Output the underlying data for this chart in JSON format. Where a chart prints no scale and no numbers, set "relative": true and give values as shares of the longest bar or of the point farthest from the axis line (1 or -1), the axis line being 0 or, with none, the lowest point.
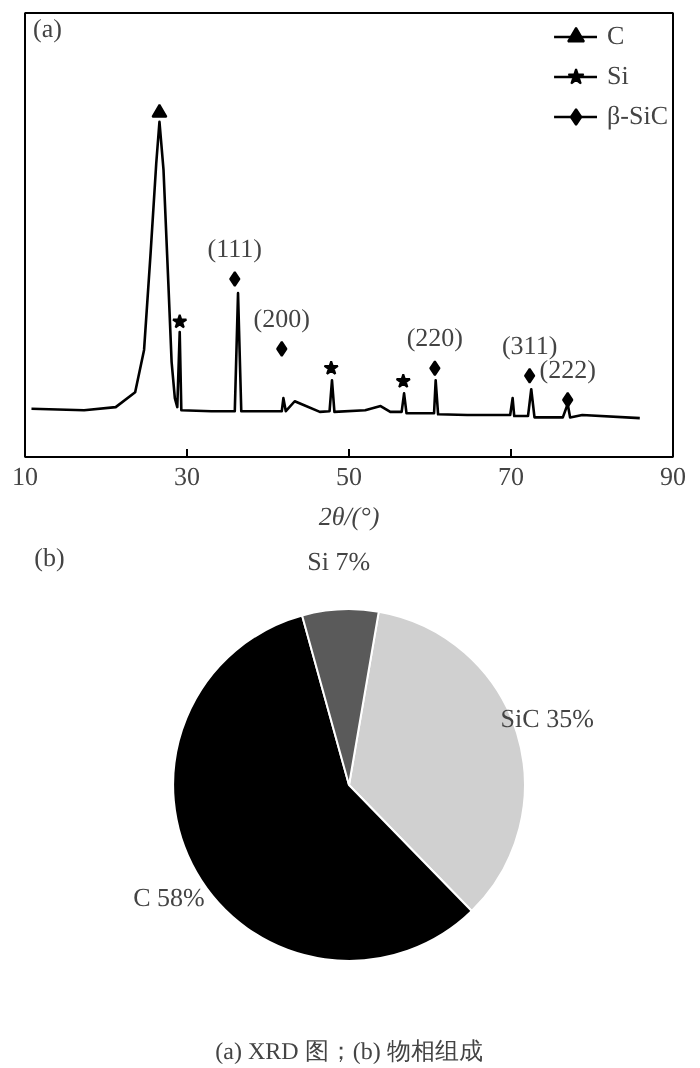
{
  "chart_data": [
    {
      "type": "line",
      "relative": true,
      "xlabel": "2θ/(°)",
      "xlim": [
        10,
        90
      ],
      "xticks": [
        10,
        30,
        50,
        70,
        90
      ],
      "tick_labels": "x",
      "grid": false,
      "legend": "top right",
      "series": [
        {
          "type": "line",
          "color": "#000000",
          "x": [
            10.8,
            17.3,
            21.2,
            23.6,
            24.7,
            25.5,
            26.2,
            26.6,
            27.1,
            27.7,
            28.1,
            28.5,
            28.8,
            29.1,
            29.3,
            33.0,
            35.9,
            36.3,
            36.7,
            39.3,
            41.7,
            41.9,
            42.2,
            43.3,
            44.1,
            46.4,
            47.6,
            47.9,
            48.2,
            52.0,
            53.9,
            55.1,
            56.5,
            56.8,
            57.1,
            60.5,
            60.7,
            61.0,
            64.6,
            69.9,
            70.2,
            70.4,
            72.1,
            72.5,
            72.9,
            76.4,
            77.0,
            77.3,
            78.8,
            85.9
          ],
          "values": [
            0.14,
            0.136,
            0.145,
            0.188,
            0.311,
            0.59,
            0.852,
            0.974,
            0.834,
            0.503,
            0.276,
            0.171,
            0.145,
            0.363,
            0.136,
            0.133,
            0.133,
            0.476,
            0.133,
            0.133,
            0.133,
            0.171,
            0.133,
            0.162,
            0.154,
            0.131,
            0.133,
            0.223,
            0.131,
            0.136,
            0.148,
            0.131,
            0.131,
            0.185,
            0.127,
            0.127,
            0.223,
            0.124,
            0.122,
            0.122,
            0.171,
            0.119,
            0.119,
            0.197,
            0.115,
            0.115,
            0.154,
            0.115,
            0.122,
            0.113
          ]
        },
        {
          "type": "scatter",
          "name": "C",
          "marker": "triangle",
          "color": "#000000",
          "x": [
            26.6
          ],
          "values": [
            1.0
          ]
        },
        {
          "type": "scatter",
          "name": "Si",
          "marker": "star",
          "color": "#000000",
          "x": [
            29.1,
            47.8,
            56.7
          ],
          "values": [
            0.393,
            0.258,
            0.22
          ]
        },
        {
          "type": "scatter",
          "name": "β-SiC",
          "marker": "diamond",
          "color": "#000000",
          "x": [
            35.9,
            41.7,
            60.6,
            72.3,
            77.0
          ],
          "values": [
            0.517,
            0.314,
            0.258,
            0.236,
            0.166
          ]
        }
      ],
      "annotations": [
        "(a)",
        {
          "text": "(111)",
          "x": 35.9,
          "y": 0.517
        },
        {
          "text": "(200)",
          "x": 41.7,
          "y": 0.314
        },
        {
          "text": "(220)",
          "x": 60.6,
          "y": 0.258
        },
        {
          "text": "(311)",
          "x": 72.3,
          "y": 0.236
        },
        {
          "text": "(222)",
          "x": 77.0,
          "y": 0.166
        }
      ]
    },
    {
      "type": "pie",
      "categories": [
        "SiC 35%",
        "C 58%",
        "Si 7%"
      ],
      "values": [
        35,
        58,
        7
      ],
      "colors": [
        "#d0d0d0",
        "#000000",
        "#5a5a5a"
      ],
      "annotations": [
        "(b)",
        "(a) XRD 图；(b) 物相组成"
      ]
    }
  ]
}
